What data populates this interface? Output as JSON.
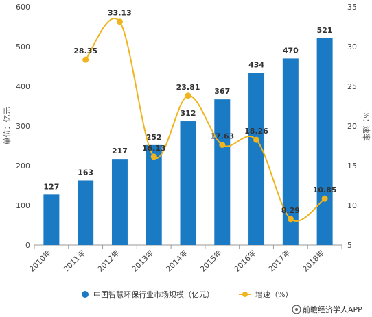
{
  "chart_data": {
    "type": "bar+line",
    "categories": [
      "2010年",
      "2011年",
      "2012年",
      "2013年",
      "2014年",
      "2015年",
      "2016年",
      "2017年",
      "2018年"
    ],
    "series": [
      {
        "name": "中国智慧环保行业市场规模（亿元）",
        "type": "bar",
        "axis": "left",
        "color": "#1a7ac4",
        "values": [
          127,
          163,
          217,
          252,
          312,
          367,
          434,
          470,
          521
        ],
        "labels": [
          "127",
          "163",
          "217",
          "252",
          "312",
          "367",
          "434",
          "470",
          "521"
        ]
      },
      {
        "name": "增速（%）",
        "type": "line",
        "axis": "right",
        "color": "#f0b41e",
        "values": [
          null,
          28.35,
          33.13,
          16.13,
          23.81,
          17.63,
          18.26,
          8.29,
          10.85
        ],
        "labels": [
          "",
          "28.35",
          "33.13",
          "16.13",
          "23.81",
          "17.63",
          "18.26",
          "8.29",
          "10.85"
        ]
      }
    ],
    "ylabel_left": "单位：亿元",
    "ylabel_right": "%：速率",
    "ylim_left": [
      0,
      600
    ],
    "ylim_right": [
      5,
      35
    ],
    "yticks_left": [
      "0",
      "100",
      "200",
      "300",
      "400",
      "500",
      "600"
    ],
    "yticks_right": [
      "5",
      "10",
      "15",
      "20",
      "25",
      "30",
      "35"
    ],
    "grid": false,
    "legend_position": "bottom"
  },
  "source": "前瞻经济学人APP",
  "colors": {
    "bar": "#1a7ac4",
    "line": "#f0b41e",
    "axis": "#999999"
  }
}
